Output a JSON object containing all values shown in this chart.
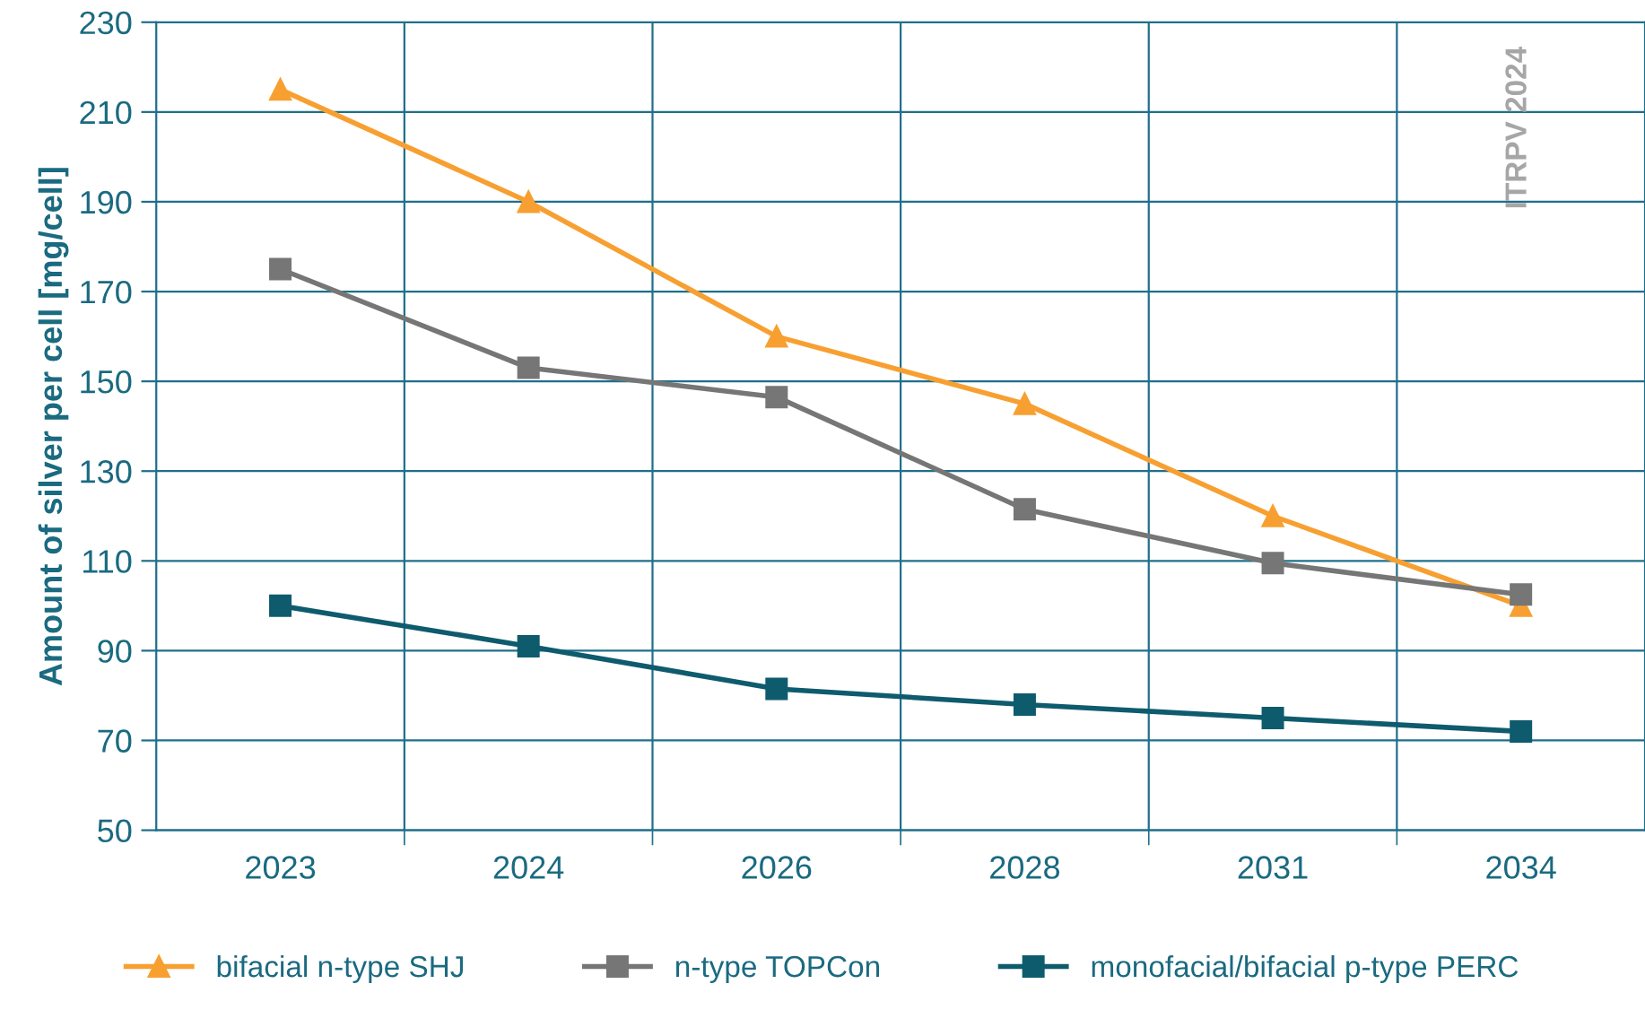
{
  "chart_data": {
    "type": "line",
    "ylabel": "Amount of silver per cell [mg/cell]",
    "categories": [
      "2023",
      "2024",
      "2026",
      "2028",
      "2031",
      "2034"
    ],
    "series": [
      {
        "name": "bifacial n-type SHJ",
        "color": "#f7a031",
        "marker": "triangle",
        "values": [
          215,
          190,
          160,
          145,
          120,
          100
        ]
      },
      {
        "name": "n-type TOPCon",
        "color": "#767676",
        "marker": "square",
        "values": [
          175,
          153,
          146.5,
          121.5,
          109.5,
          102.5
        ]
      },
      {
        "name": "monofacial/bifacial p-type PERC",
        "color": "#0f5b6e",
        "marker": "square",
        "values": [
          100,
          91,
          81.5,
          78,
          75,
          72
        ]
      }
    ],
    "ylim": [
      50,
      230
    ],
    "yticks": [
      50,
      70,
      90,
      110,
      130,
      150,
      170,
      190,
      210,
      230
    ],
    "grid": true,
    "legend": "bottom",
    "line_style": "solid",
    "annotations": [
      "ITRPV 2024"
    ]
  }
}
